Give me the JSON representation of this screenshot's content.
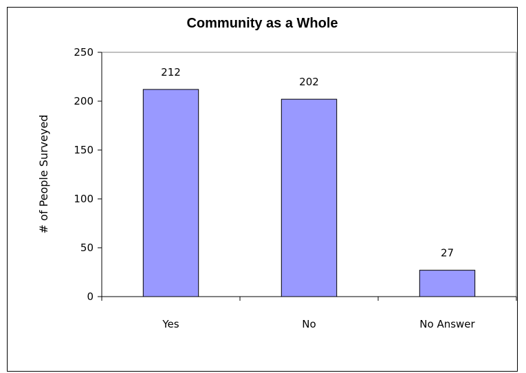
{
  "chart_data": {
    "type": "bar",
    "title": "Community as a Whole",
    "xlabel": "",
    "ylabel": "# of People Surveyed",
    "categories": [
      "Yes",
      "No",
      "No Answer"
    ],
    "values": [
      212,
      202,
      27
    ],
    "ylim": [
      0,
      250
    ],
    "yticks": [
      0,
      50,
      100,
      150,
      200,
      250
    ],
    "grid": false,
    "legend": "none",
    "colors": {
      "bar_fill": "#9999ff",
      "bar_stroke": "#000000",
      "axis": "#000000",
      "plot_border": "#808080"
    }
  }
}
